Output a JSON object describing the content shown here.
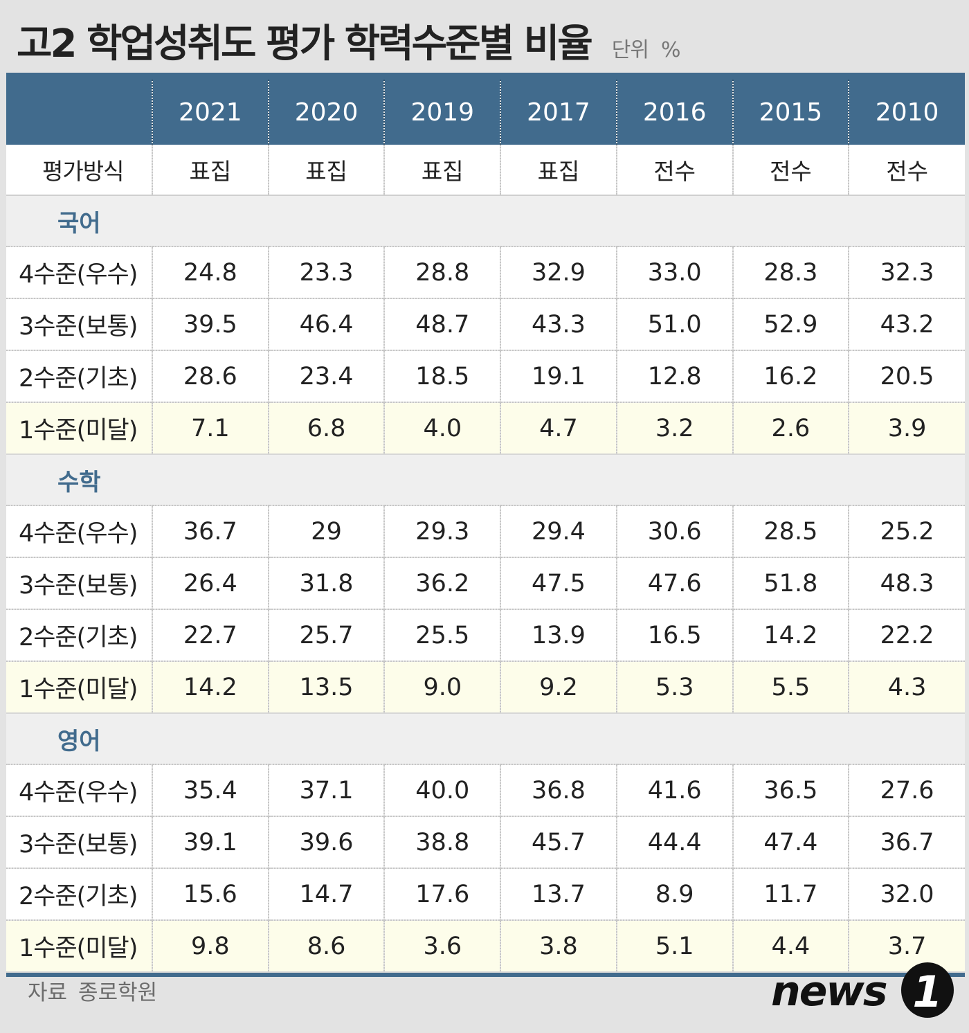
{
  "title": "고2 학업성취도 평가 학력수준별 비율",
  "unit_label": "단위",
  "unit_symbol": "%",
  "source_label": "자료",
  "source_name": "종로학원",
  "logo": {
    "text": "news",
    "mark": "1"
  },
  "chart_data": {
    "type": "table",
    "title": "고2 학업성취도 평가 학력수준별 비율",
    "unit": "%",
    "columns": [
      "2021",
      "2020",
      "2019",
      "2017",
      "2016",
      "2015",
      "2010"
    ],
    "method_row": {
      "label": "평가방식",
      "values": [
        "표집",
        "표집",
        "표집",
        "표집",
        "전수",
        "전수",
        "전수"
      ]
    },
    "sections": [
      {
        "subject": "국어",
        "rows": [
          {
            "label": "4수준(우수)",
            "values": [
              "24.8",
              "23.3",
              "28.8",
              "32.9",
              "33.0",
              "28.3",
              "32.3"
            ]
          },
          {
            "label": "3수준(보통)",
            "values": [
              "39.5",
              "46.4",
              "48.7",
              "43.3",
              "51.0",
              "52.9",
              "43.2"
            ]
          },
          {
            "label": "2수준(기초)",
            "values": [
              "28.6",
              "23.4",
              "18.5",
              "19.1",
              "12.8",
              "16.2",
              "20.5"
            ]
          },
          {
            "label": "1수준(미달)",
            "values": [
              "7.1",
              "6.8",
              "4.0",
              "4.7",
              "3.2",
              "2.6",
              "3.9"
            ]
          }
        ]
      },
      {
        "subject": "수학",
        "rows": [
          {
            "label": "4수준(우수)",
            "values": [
              "36.7",
              "29",
              "29.3",
              "29.4",
              "30.6",
              "28.5",
              "25.2"
            ]
          },
          {
            "label": "3수준(보통)",
            "values": [
              "26.4",
              "31.8",
              "36.2",
              "47.5",
              "47.6",
              "51.8",
              "48.3"
            ]
          },
          {
            "label": "2수준(기초)",
            "values": [
              "22.7",
              "25.7",
              "25.5",
              "13.9",
              "16.5",
              "14.2",
              "22.2"
            ]
          },
          {
            "label": "1수준(미달)",
            "values": [
              "14.2",
              "13.5",
              "9.0",
              "9.2",
              "5.3",
              "5.5",
              "4.3"
            ]
          }
        ]
      },
      {
        "subject": "영어",
        "rows": [
          {
            "label": "4수준(우수)",
            "values": [
              "35.4",
              "37.1",
              "40.0",
              "36.8",
              "41.6",
              "36.5",
              "27.6"
            ]
          },
          {
            "label": "3수준(보통)",
            "values": [
              "39.1",
              "39.6",
              "38.8",
              "45.7",
              "44.4",
              "47.4",
              "36.7"
            ]
          },
          {
            "label": "2수준(기초)",
            "values": [
              "15.6",
              "14.7",
              "17.6",
              "13.7",
              "8.9",
              "11.7",
              "32.0"
            ]
          },
          {
            "label": "1수준(미달)",
            "values": [
              "9.8",
              "8.6",
              "3.6",
              "3.8",
              "5.1",
              "4.4",
              "3.7"
            ]
          }
        ]
      }
    ]
  }
}
